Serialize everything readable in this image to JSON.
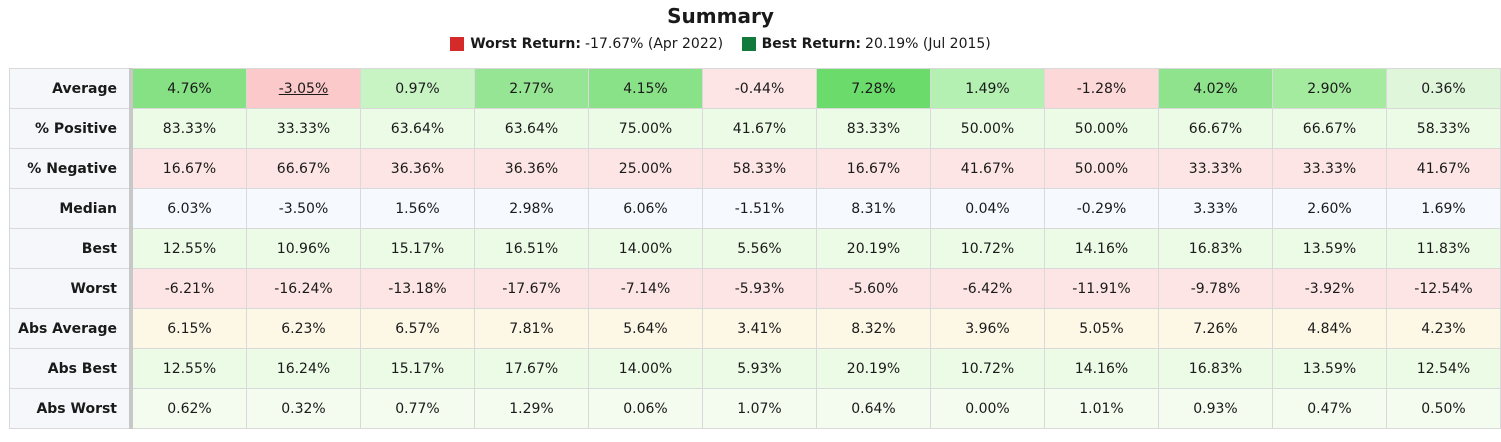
{
  "title": "Summary",
  "legend": {
    "worst": {
      "label": "Worst Return:",
      "value": "-17.67% (Apr 2022)",
      "color": "#d42a2a"
    },
    "best": {
      "label": "Best Return:",
      "value": "20.19% (Jul 2015)",
      "color": "#137a3e"
    }
  },
  "rows": {
    "average": {
      "label": "Average",
      "values": [
        "4.76%",
        "-3.05%",
        "0.97%",
        "2.77%",
        "4.15%",
        "-0.44%",
        "7.28%",
        "1.49%",
        "-1.28%",
        "4.02%",
        "2.90%",
        "0.36%"
      ],
      "colors": [
        "#86e184",
        "#fbc9c9",
        "#c8f4c4",
        "#96e594",
        "#8ae288",
        "#fde5e5",
        "#6bdc6b",
        "#b4f0b1",
        "#fdd8d8",
        "#8fe38d",
        "#a4ea9f",
        "#dff6da"
      ]
    },
    "positive": {
      "label": "% Positive",
      "values": [
        "83.33%",
        "33.33%",
        "63.64%",
        "63.64%",
        "75.00%",
        "41.67%",
        "83.33%",
        "50.00%",
        "50.00%",
        "66.67%",
        "66.67%",
        "58.33%"
      ]
    },
    "negative": {
      "label": "% Negative",
      "values": [
        "16.67%",
        "66.67%",
        "36.36%",
        "36.36%",
        "25.00%",
        "58.33%",
        "16.67%",
        "41.67%",
        "50.00%",
        "33.33%",
        "33.33%",
        "41.67%"
      ]
    },
    "median": {
      "label": "Median",
      "values": [
        "6.03%",
        "-3.50%",
        "1.56%",
        "2.98%",
        "6.06%",
        "-1.51%",
        "8.31%",
        "0.04%",
        "-0.29%",
        "3.33%",
        "2.60%",
        "1.69%"
      ]
    },
    "best": {
      "label": "Best",
      "values": [
        "12.55%",
        "10.96%",
        "15.17%",
        "16.51%",
        "14.00%",
        "5.56%",
        "20.19%",
        "10.72%",
        "14.16%",
        "16.83%",
        "13.59%",
        "11.83%"
      ]
    },
    "worst": {
      "label": "Worst",
      "values": [
        "-6.21%",
        "-16.24%",
        "-13.18%",
        "-17.67%",
        "-7.14%",
        "-5.93%",
        "-5.60%",
        "-6.42%",
        "-11.91%",
        "-9.78%",
        "-3.92%",
        "-12.54%"
      ]
    },
    "abs_average": {
      "label": "Abs Average",
      "values": [
        "6.15%",
        "6.23%",
        "6.57%",
        "7.81%",
        "5.64%",
        "3.41%",
        "8.32%",
        "3.96%",
        "5.05%",
        "7.26%",
        "4.84%",
        "4.23%"
      ]
    },
    "abs_best": {
      "label": "Abs Best",
      "values": [
        "12.55%",
        "16.24%",
        "15.17%",
        "17.67%",
        "14.00%",
        "5.93%",
        "20.19%",
        "10.72%",
        "14.16%",
        "16.83%",
        "13.59%",
        "12.54%"
      ]
    },
    "abs_worst": {
      "label": "Abs Worst",
      "values": [
        "0.62%",
        "0.32%",
        "0.77%",
        "1.29%",
        "0.06%",
        "1.07%",
        "0.64%",
        "0.00%",
        "1.01%",
        "0.93%",
        "0.47%",
        "0.50%"
      ]
    }
  }
}
